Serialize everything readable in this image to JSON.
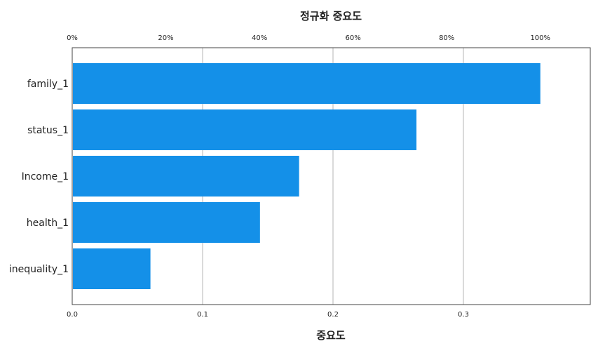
{
  "chart_data": {
    "type": "bar",
    "orientation": "horizontal",
    "title": "정규화 중요도",
    "xlabel": "중요도",
    "ylabel": "",
    "categories": [
      "family_1",
      "status_1",
      "Income_1",
      "health_1",
      "inequality_1"
    ],
    "values": [
      0.359,
      0.264,
      0.174,
      0.144,
      0.06
    ],
    "xlim": [
      0,
      0.4
    ],
    "x_ticks": [
      "0.0",
      "0.1",
      "0.2",
      "0.3"
    ],
    "x_tick_values": [
      0,
      0.1,
      0.2,
      0.3
    ],
    "top_axis_ticks": [
      "0%",
      "20%",
      "40%",
      "60%",
      "80%",
      "100%"
    ],
    "top_axis_values": [
      0,
      20,
      40,
      60,
      80,
      100
    ],
    "grid": "vertical",
    "bar_color": "#1490e8",
    "grid_color": "#b4b4b4"
  }
}
